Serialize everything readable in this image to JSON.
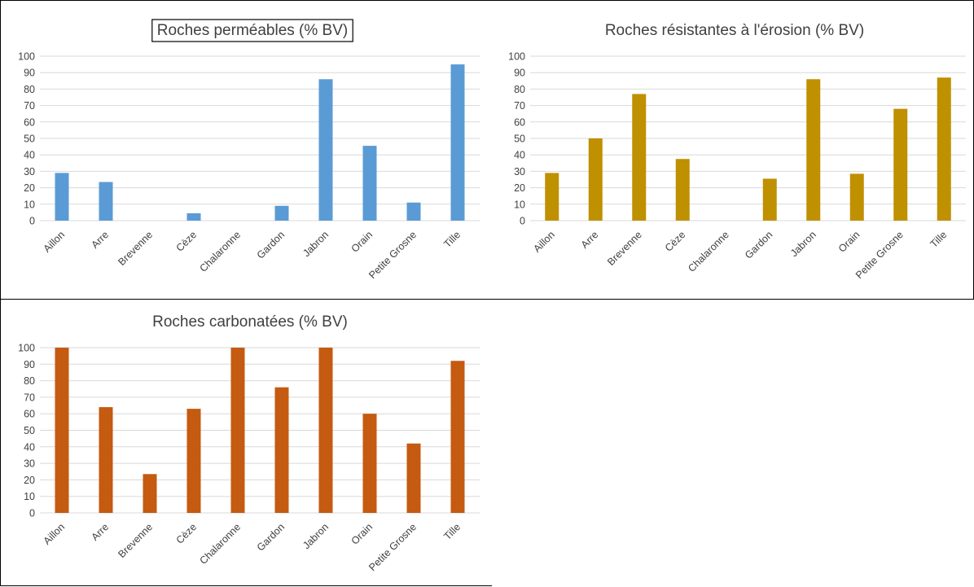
{
  "chart_data": [
    {
      "type": "bar",
      "title": "Roches perméables (% BV)",
      "categories": [
        "Aillon",
        "Arre",
        "Brevenne",
        "Cèze",
        "Chalaronne",
        "Gardon",
        "Jabron",
        "Orain",
        "Petite Grosne",
        "Tille"
      ],
      "values": [
        29,
        23.5,
        0,
        4.5,
        0,
        9,
        86,
        45.5,
        11,
        95
      ],
      "yticks": [
        "0",
        "10",
        "20",
        "30",
        "40",
        "50",
        "60",
        "70",
        "80",
        "90",
        "100"
      ],
      "ylim": [
        0,
        100
      ],
      "grid": true,
      "color": "#5b9bd5",
      "title_boxed": true
    },
    {
      "type": "bar",
      "title": "Roches résistantes à l'érosion (% BV)",
      "categories": [
        "Aillon",
        "Arre",
        "Brevenne",
        "Cèze",
        "Chalaronne",
        "Gardon",
        "Jabron",
        "Orain",
        "Petite Grosne",
        "Tille"
      ],
      "values": [
        29,
        50,
        77,
        37.5,
        0,
        25.5,
        86,
        28.5,
        68,
        87
      ],
      "yticks": [
        "0",
        "10",
        "20",
        "30",
        "40",
        "50",
        "60",
        "70",
        "80",
        "90",
        "100"
      ],
      "ylim": [
        0,
        100
      ],
      "grid": true,
      "color": "#bf9000",
      "title_boxed": false
    },
    {
      "type": "bar",
      "title": "Roches carbonatées (% BV)",
      "categories": [
        "Aillon",
        "Arre",
        "Brevenne",
        "Cèze",
        "Chalaronne",
        "Gardon",
        "Jabron",
        "Orain",
        "Petite Grosne",
        "Tille"
      ],
      "values": [
        100,
        64,
        23.5,
        63,
        100,
        76,
        100,
        60,
        42,
        92
      ],
      "yticks": [
        "0",
        "10",
        "20",
        "30",
        "40",
        "50",
        "60",
        "70",
        "80",
        "90",
        "100"
      ],
      "ylim": [
        0,
        100
      ],
      "grid": true,
      "color": "#c55a11",
      "title_boxed": false
    }
  ]
}
